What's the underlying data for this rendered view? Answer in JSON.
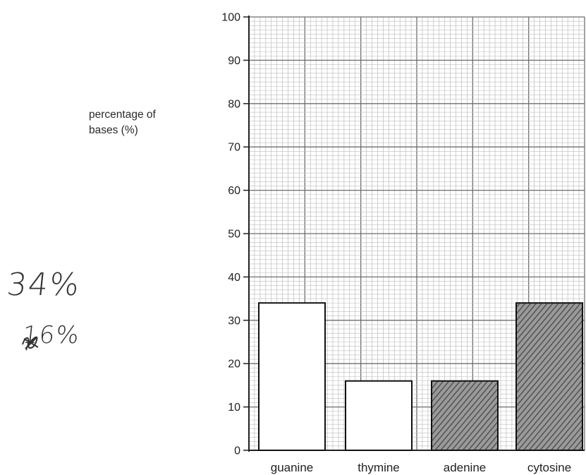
{
  "chart_data": {
    "type": "bar",
    "ylabel_line1": "percentage of",
    "ylabel_line2": "bases (%)",
    "categories": [
      "guanine",
      "thymine",
      "adenine",
      "cytosine"
    ],
    "values": [
      34,
      16,
      16,
      34
    ],
    "shaded": [
      false,
      false,
      true,
      true
    ],
    "ylim": [
      0,
      100
    ],
    "yticks": [
      0,
      10,
      20,
      30,
      40,
      50,
      60,
      70,
      80,
      90,
      100
    ],
    "grid": true
  },
  "annotations": {
    "handwritten_1": "34%",
    "handwritten_2": "16%"
  },
  "colors": {
    "grid_minor": "#bdbdbd",
    "grid_major": "#6e6e6e",
    "axis": "#222222",
    "shading": "#555555"
  }
}
